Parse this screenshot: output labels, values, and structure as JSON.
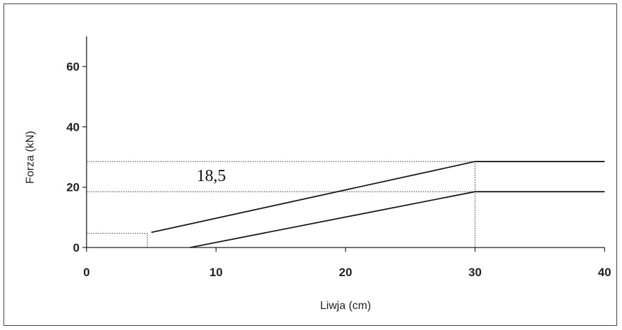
{
  "chart_data": {
    "type": "line",
    "xlabel": "Liwja (cm)",
    "ylabel": "Forza (kN)",
    "xlim": [
      0,
      40
    ],
    "ylim": [
      0,
      70
    ],
    "x_ticks": [
      0,
      10,
      20,
      30,
      40
    ],
    "y_ticks": [
      0,
      20,
      40,
      60
    ],
    "grid": false,
    "series": [
      {
        "x": [
          5,
          30,
          40
        ],
        "y": [
          5,
          28.5,
          28.5
        ]
      },
      {
        "x": [
          8,
          30,
          40
        ],
        "y": [
          0,
          18.5,
          18.5
        ]
      }
    ],
    "reference_lines": [
      {
        "x": [
          0,
          30
        ],
        "y": [
          28.5,
          28.5
        ]
      },
      {
        "x": [
          0,
          30
        ],
        "y": [
          18.5,
          18.5
        ]
      },
      {
        "x": [
          0,
          4.7
        ],
        "y": [
          4.7,
          4.7
        ]
      },
      {
        "x": [
          4.7,
          4.7
        ],
        "y": [
          0,
          4.7
        ]
      },
      {
        "x": [
          30,
          30
        ],
        "y": [
          0,
          28.5
        ]
      }
    ],
    "annotations": [
      {
        "text": "18,5",
        "x": 8.5,
        "y": 22
      }
    ]
  }
}
